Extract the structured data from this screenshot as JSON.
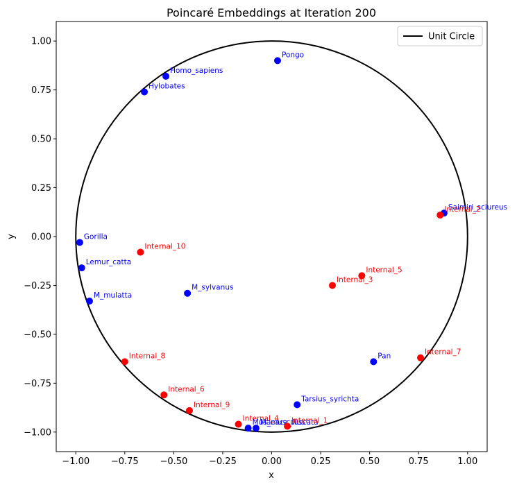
{
  "chart_data": {
    "type": "scatter",
    "title": "Poincaré Embeddings at Iteration 200",
    "xlabel": "x",
    "ylabel": "y",
    "xlim": [
      -1.1,
      1.1
    ],
    "ylim": [
      -1.1,
      1.1
    ],
    "xticks": [
      "−1.00",
      "−0.75",
      "−0.50",
      "−0.25",
      "0.00",
      "0.25",
      "0.50",
      "0.75",
      "1.00"
    ],
    "yticks": [
      "−1.00",
      "−0.75",
      "−0.50",
      "−0.25",
      "0.00",
      "0.25",
      "0.50",
      "0.75",
      "1.00"
    ],
    "xtick_values": [
      -1,
      -0.75,
      -0.5,
      -0.25,
      0,
      0.25,
      0.5,
      0.75,
      1
    ],
    "ytick_values": [
      -1,
      -0.75,
      -0.5,
      -0.25,
      0,
      0.25,
      0.5,
      0.75,
      1
    ],
    "grid": false,
    "legend": {
      "position": "top-right",
      "entries": [
        "Unit Circle"
      ]
    },
    "colors": {
      "leaf": "#0000ff",
      "internal": "#ff0000",
      "circle": "#000000"
    },
    "points": [
      {
        "name": "Pongo",
        "x": 0.03,
        "y": 0.9,
        "kind": "leaf"
      },
      {
        "name": "Homo_sapiens",
        "x": -0.54,
        "y": 0.82,
        "kind": "leaf"
      },
      {
        "name": "Hylobates",
        "x": -0.65,
        "y": 0.74,
        "kind": "leaf"
      },
      {
        "name": "Saimiri_sciureus",
        "x": 0.88,
        "y": 0.12,
        "kind": "leaf"
      },
      {
        "name": "Internal_2",
        "x": 0.86,
        "y": 0.11,
        "kind": "internal"
      },
      {
        "name": "Gorilla",
        "x": -0.98,
        "y": -0.03,
        "kind": "leaf"
      },
      {
        "name": "Internal_10",
        "x": -0.67,
        "y": -0.08,
        "kind": "internal"
      },
      {
        "name": "Lemur_catta",
        "x": -0.97,
        "y": -0.16,
        "kind": "leaf"
      },
      {
        "name": "Internal_5",
        "x": 0.46,
        "y": -0.2,
        "kind": "internal"
      },
      {
        "name": "Internal_3",
        "x": 0.31,
        "y": -0.25,
        "kind": "internal"
      },
      {
        "name": "M_sylvanus",
        "x": -0.43,
        "y": -0.29,
        "kind": "leaf"
      },
      {
        "name": "M_mulatta",
        "x": -0.93,
        "y": -0.33,
        "kind": "leaf"
      },
      {
        "name": "Internal_8",
        "x": -0.75,
        "y": -0.64,
        "kind": "internal"
      },
      {
        "name": "Pan",
        "x": 0.52,
        "y": -0.64,
        "kind": "leaf"
      },
      {
        "name": "Internal_7",
        "x": 0.76,
        "y": -0.62,
        "kind": "internal"
      },
      {
        "name": "Internal_6",
        "x": -0.55,
        "y": -0.81,
        "kind": "internal"
      },
      {
        "name": "Tarsius_syrichta",
        "x": 0.13,
        "y": -0.86,
        "kind": "leaf"
      },
      {
        "name": "Internal_9",
        "x": -0.42,
        "y": -0.89,
        "kind": "internal"
      },
      {
        "name": "Internal_4",
        "x": -0.17,
        "y": -0.96,
        "kind": "internal"
      },
      {
        "name": "Mus_musculus",
        "x": -0.12,
        "y": -0.98,
        "kind": "leaf"
      },
      {
        "name": "Macaca_fuscata",
        "x": -0.08,
        "y": -0.98,
        "kind": "leaf"
      },
      {
        "name": "Internal_1",
        "x": 0.08,
        "y": -0.97,
        "kind": "internal"
      }
    ]
  }
}
